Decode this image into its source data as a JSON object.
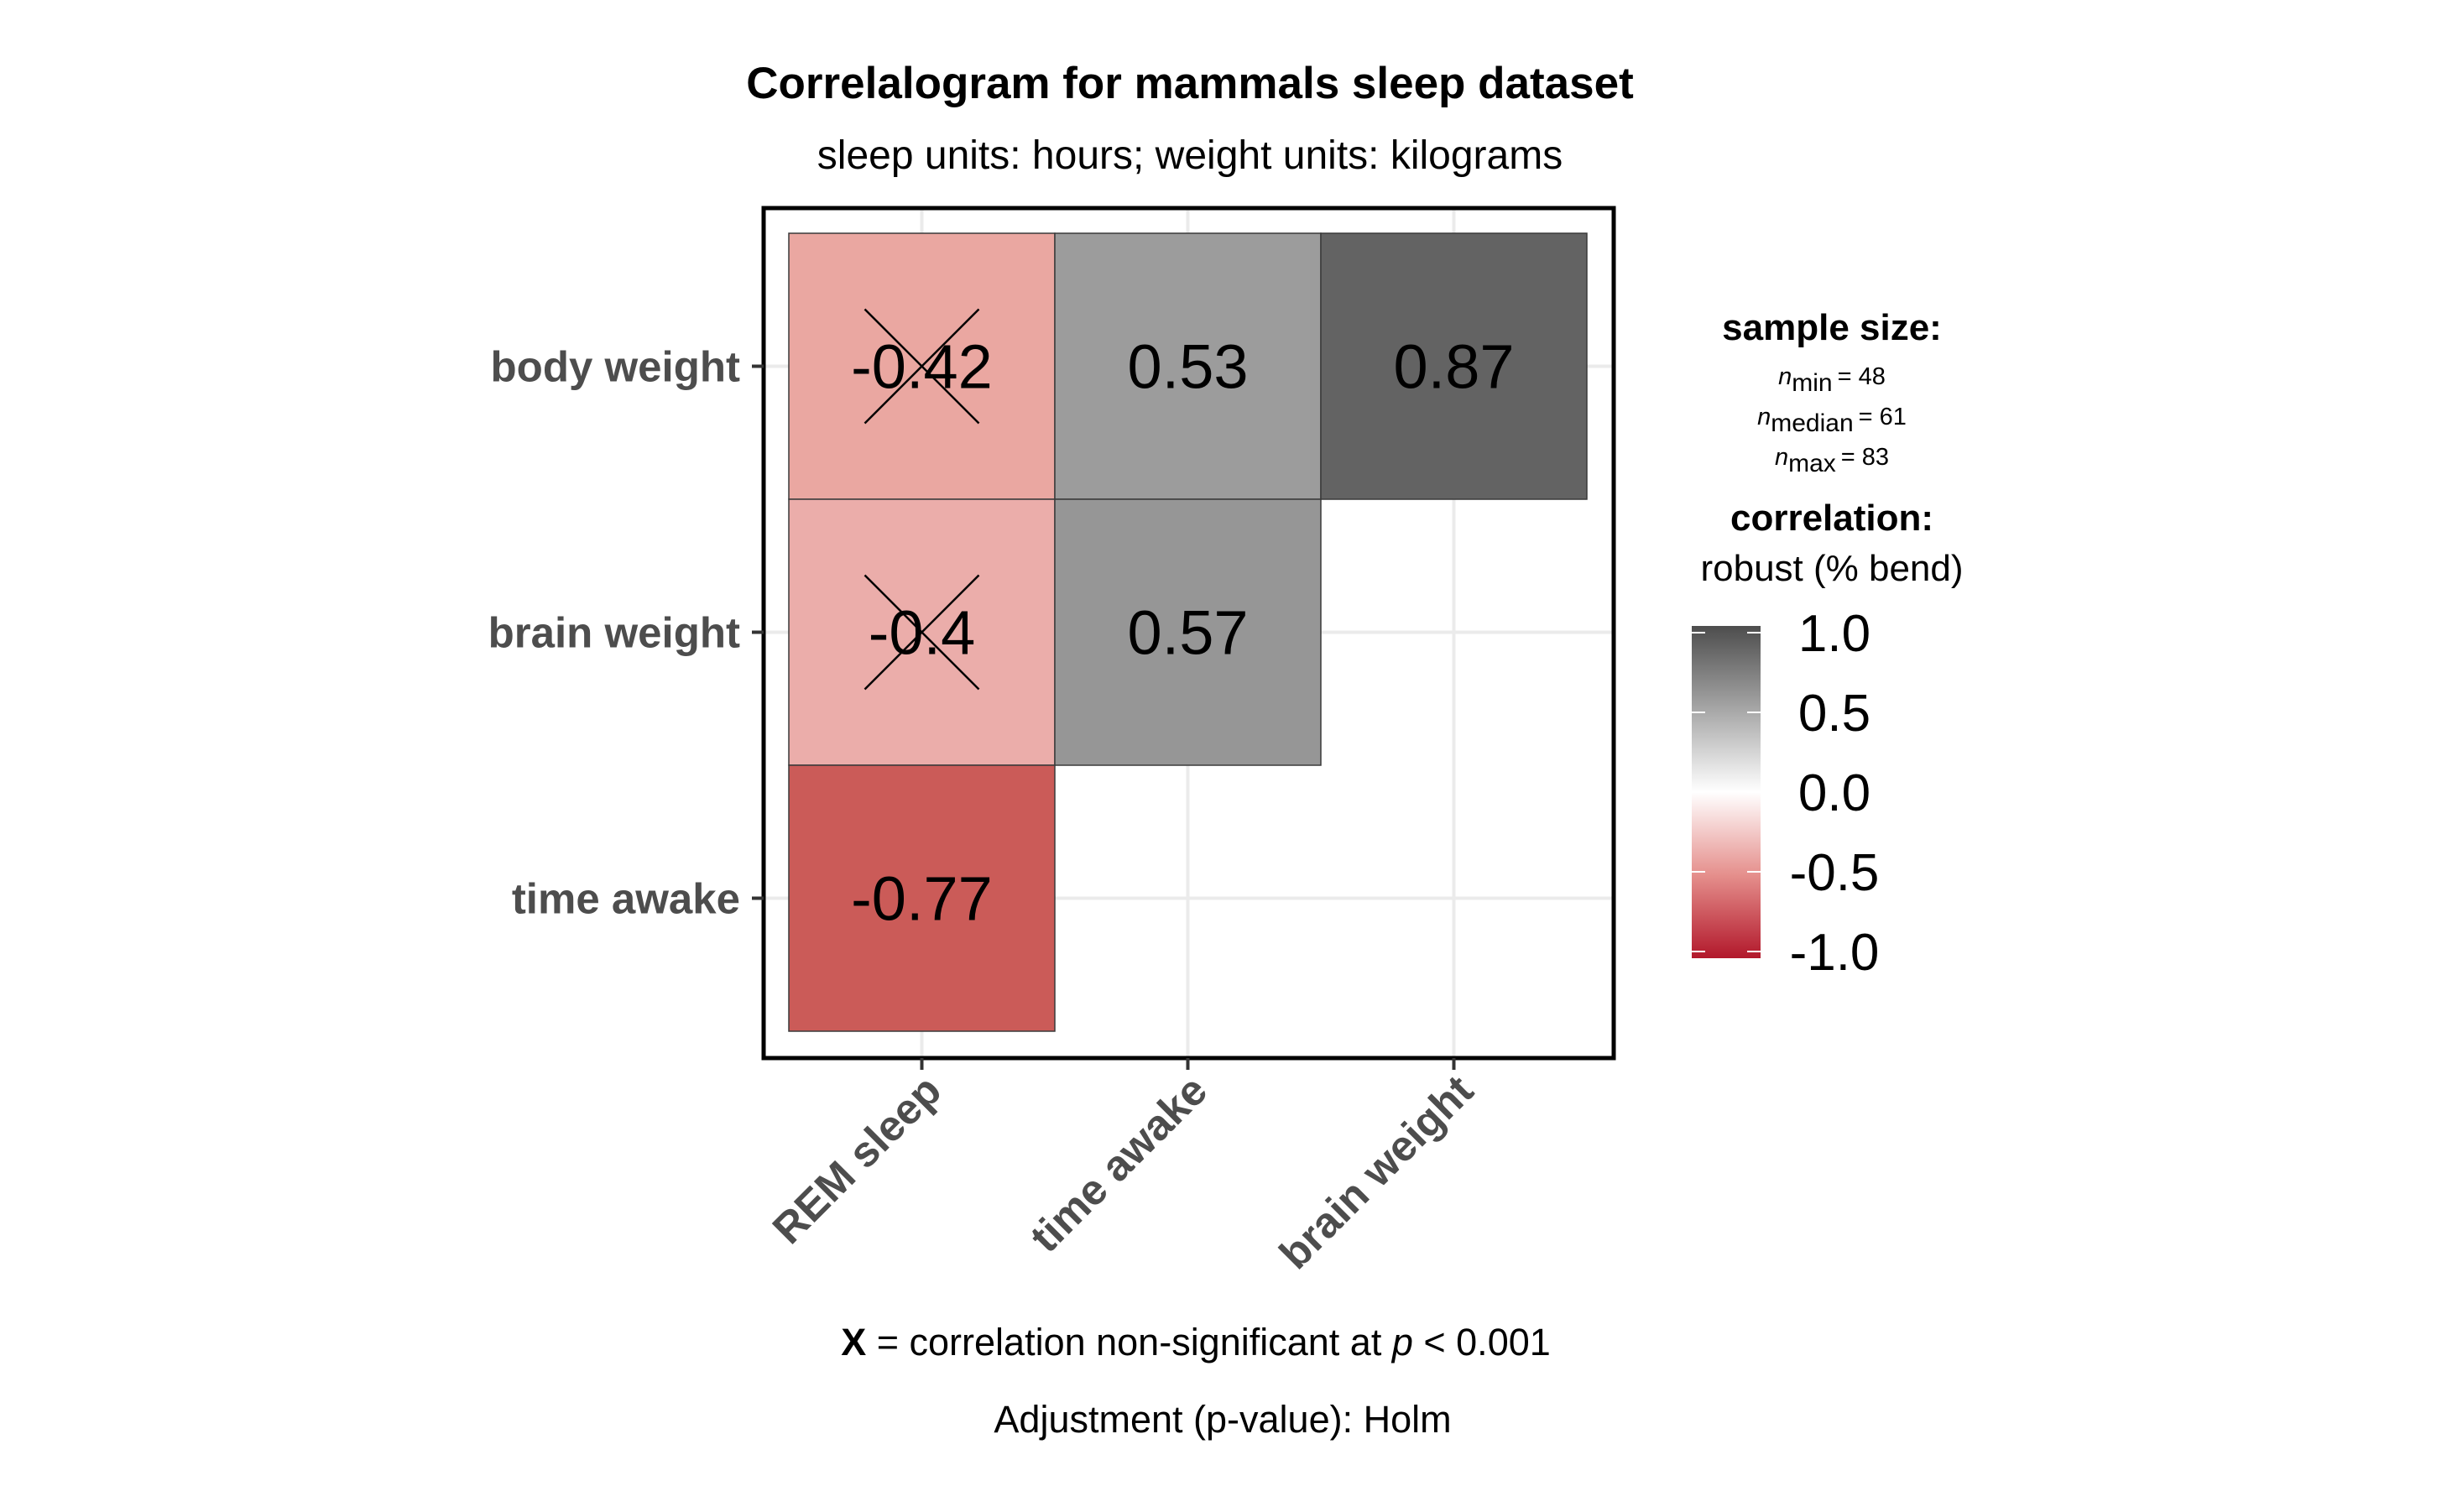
{
  "chart_data": {
    "type": "heatmap",
    "title": "Correlalogram for mammals sleep dataset",
    "subtitle": "sleep units: hours; weight units: kilograms",
    "x_categories": [
      "REM sleep",
      "time awake",
      "brain weight"
    ],
    "y_categories": [
      "body weight",
      "brain weight",
      "time awake"
    ],
    "cells": [
      {
        "x": "REM sleep",
        "y": "body weight",
        "value": -0.42,
        "label": "-0.42",
        "nonsignificant": true,
        "color": "#eaa7a1"
      },
      {
        "x": "time awake",
        "y": "body weight",
        "value": 0.53,
        "label": "0.53",
        "nonsignificant": false,
        "color": "#9c9c9c"
      },
      {
        "x": "brain weight",
        "y": "body weight",
        "value": 0.87,
        "label": "0.87",
        "nonsignificant": false,
        "color": "#636363"
      },
      {
        "x": "REM sleep",
        "y": "brain weight",
        "value": -0.4,
        "label": "-0.4",
        "nonsignificant": true,
        "color": "#ebadaa"
      },
      {
        "x": "time awake",
        "y": "brain weight",
        "value": 0.57,
        "label": "0.57",
        "nonsignificant": false,
        "color": "#969696"
      },
      {
        "x": "REM sleep",
        "y": "time awake",
        "value": -0.77,
        "label": "-0.77",
        "nonsignificant": false,
        "color": "#cb5b58"
      }
    ],
    "legend": {
      "sample_size_title": "sample size:",
      "n_min_symbol": "n",
      "n_min_sub": "min",
      "n_min_value": "= 48",
      "n_median_symbol": "n",
      "n_median_sub": "median",
      "n_median_value": "= 61",
      "n_max_symbol": "n",
      "n_max_sub": "max",
      "n_max_value": "= 83",
      "correlation_title": "correlation:",
      "correlation_type": "robust (% bend)",
      "colorbar_ticks": [
        1.0,
        0.5,
        0.0,
        -0.5,
        -1.0
      ],
      "colorbar_labels": [
        "1.0",
        "0.5",
        "0.0",
        "-0.5",
        "-1.0"
      ],
      "colorbar_range": [
        -1.0,
        1.0
      ],
      "colors": {
        "low": "#b2182b",
        "mid": "#ffffff",
        "high": "#4d4d4d"
      }
    },
    "caption": {
      "symbol": "X",
      "text_before_p": " = correlation non-significant at ",
      "p_symbol": "p",
      "text_after_p": " < 0.001",
      "adjustment": "Adjustment (p-value): Holm"
    },
    "grid": true
  }
}
